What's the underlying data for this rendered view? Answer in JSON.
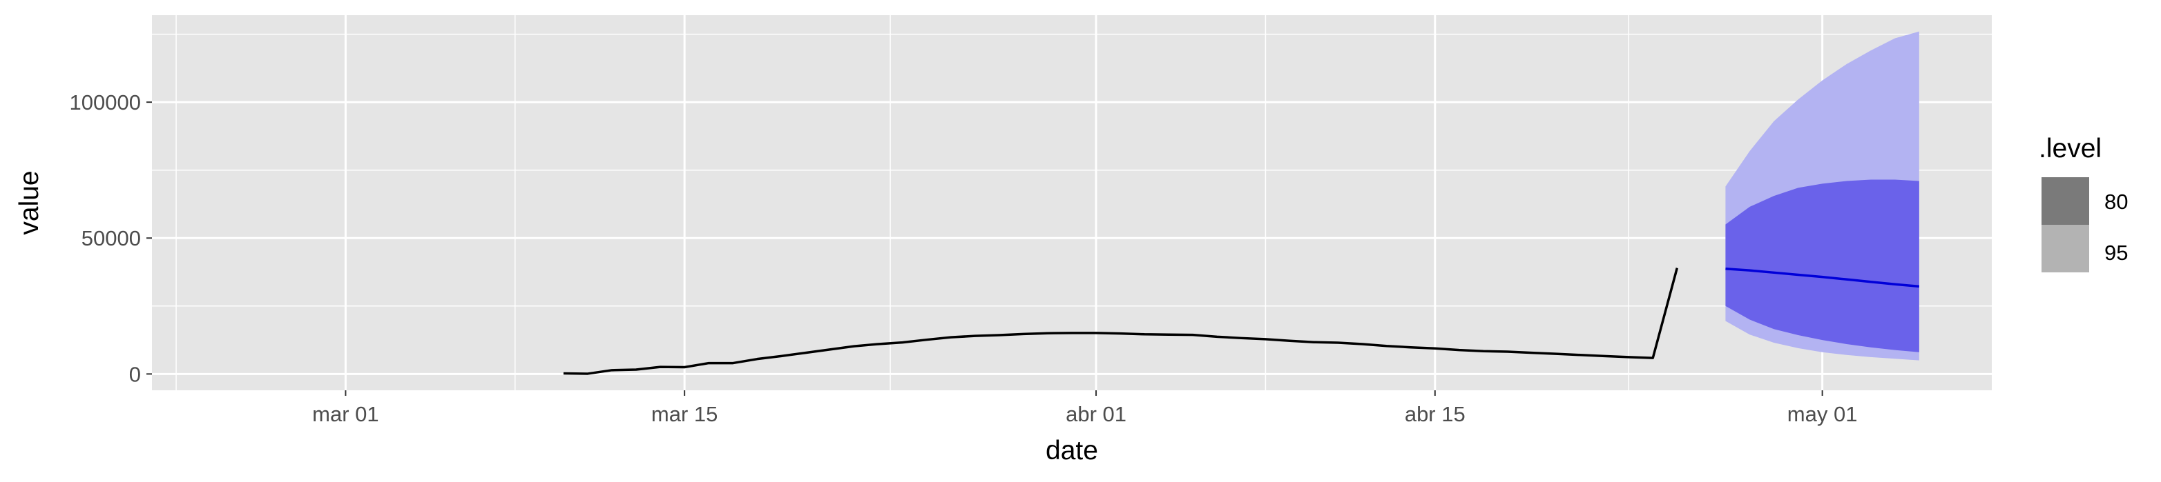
{
  "chart_data": {
    "type": "line",
    "xlabel": "date",
    "ylabel": "value",
    "x_range": [
      "2020-02-22",
      "2020-05-08"
    ],
    "y_range": [
      -6000,
      132000
    ],
    "x_ticks": [
      {
        "date": "2020-03-01",
        "label": "mar 01"
      },
      {
        "date": "2020-03-15",
        "label": "mar 15"
      },
      {
        "date": "2020-04-01",
        "label": "abr 01"
      },
      {
        "date": "2020-04-15",
        "label": "abr 15"
      },
      {
        "date": "2020-05-01",
        "label": "may 01"
      }
    ],
    "y_ticks": [
      {
        "value": 0,
        "label": "0"
      },
      {
        "value": 50000,
        "label": "50000"
      },
      {
        "value": 100000,
        "label": "100000"
      }
    ],
    "grid": true,
    "legend": {
      "title": ".level",
      "placement": "right",
      "items": [
        {
          "label": "80",
          "color": "#7a7a7a"
        },
        {
          "label": "95",
          "color": "#b3b3b3"
        }
      ]
    },
    "series": [
      {
        "color": "#000000",
        "dates": [
          "2020-03-10",
          "2020-03-11",
          "2020-03-12",
          "2020-03-13",
          "2020-03-14",
          "2020-03-15",
          "2020-03-16",
          "2020-03-17",
          "2020-03-18",
          "2020-03-19",
          "2020-03-20",
          "2020-03-21",
          "2020-03-22",
          "2020-03-23",
          "2020-03-24",
          "2020-03-25",
          "2020-03-26",
          "2020-03-27",
          "2020-03-28",
          "2020-03-29",
          "2020-03-30",
          "2020-03-31",
          "2020-04-01",
          "2020-04-02",
          "2020-04-03",
          "2020-04-04",
          "2020-04-05",
          "2020-04-06",
          "2020-04-07",
          "2020-04-08",
          "2020-04-09",
          "2020-04-10",
          "2020-04-11",
          "2020-04-12",
          "2020-04-13",
          "2020-04-14",
          "2020-04-15",
          "2020-04-16",
          "2020-04-17",
          "2020-04-18",
          "2020-04-19",
          "2020-04-20",
          "2020-04-21",
          "2020-04-22",
          "2020-04-23",
          "2020-04-24",
          "2020-04-25",
          "2020-04-26"
        ],
        "values": [
          200,
          100,
          1400,
          1600,
          2600,
          2500,
          4000,
          4000,
          5500,
          6600,
          7800,
          9000,
          10200,
          11000,
          11600,
          12600,
          13500,
          14000,
          14300,
          14700,
          15000,
          15100,
          15100,
          14900,
          14600,
          14500,
          14400,
          13700,
          13200,
          12800,
          12200,
          11700,
          11500,
          11000,
          10300,
          9800,
          9400,
          8800,
          8400,
          8200,
          7800,
          7400,
          7000,
          6600,
          6200,
          5900,
          39000,
          null
        ]
      },
      {
        "color": "#0000d9",
        "dates": [
          "2020-04-27",
          "2020-04-28",
          "2020-04-29",
          "2020-04-30",
          "2020-05-01",
          "2020-05-02",
          "2020-05-03",
          "2020-05-04",
          "2020-05-05"
        ],
        "values": [
          38700,
          38100,
          37300,
          36500,
          35700,
          34800,
          33900,
          33000,
          32200
        ]
      }
    ],
    "bands": [
      {
        "level": "95",
        "color": "#b3b3f2",
        "dates": [
          "2020-04-27",
          "2020-04-28",
          "2020-04-29",
          "2020-04-30",
          "2020-05-01",
          "2020-05-02",
          "2020-05-03",
          "2020-05-04",
          "2020-05-05"
        ],
        "lower": [
          19500,
          14500,
          11500,
          9500,
          8000,
          7000,
          6200,
          5600,
          5000
        ],
        "upper": [
          69000,
          82000,
          93000,
          101000,
          108000,
          114000,
          119000,
          123500,
          126000
        ]
      },
      {
        "level": "80",
        "color": "#6a62ea",
        "dates": [
          "2020-04-27",
          "2020-04-28",
          "2020-04-29",
          "2020-04-30",
          "2020-05-01",
          "2020-05-02",
          "2020-05-03",
          "2020-05-04",
          "2020-05-05"
        ],
        "lower": [
          25000,
          20000,
          16500,
          14300,
          12500,
          11000,
          9800,
          8800,
          8000
        ],
        "upper": [
          55000,
          61500,
          65500,
          68500,
          70000,
          71000,
          71500,
          71500,
          71000
        ]
      }
    ]
  }
}
